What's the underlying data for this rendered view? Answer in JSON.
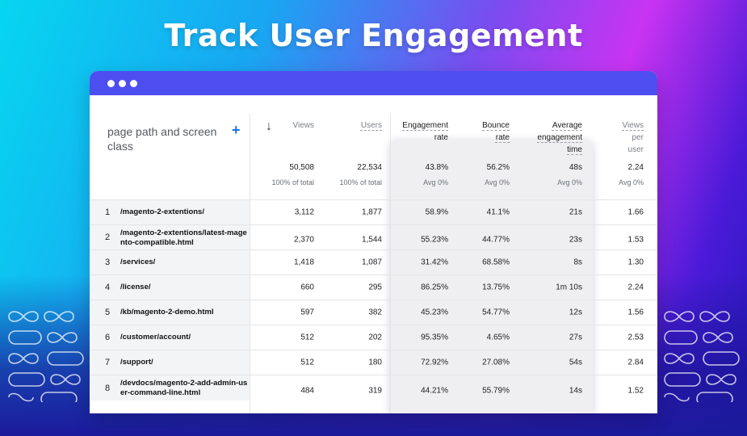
{
  "headline": "Track User Engagement",
  "window": {
    "first_col_title": "page path and screen class",
    "add_icon": "+",
    "sort_icon": "↓",
    "headers": {
      "views": "Views",
      "users": "Users",
      "engagement_rate": [
        "Engagement",
        "rate"
      ],
      "bounce_rate": [
        "Bounce",
        "rate"
      ],
      "avg_engagement_time": [
        "Average",
        "engagement",
        "time"
      ],
      "views_per_user": [
        "Views",
        "per",
        "user"
      ]
    },
    "totals": {
      "views": "50,508",
      "views_sub": "100% of total",
      "users": "22,534",
      "users_sub": "100% of total",
      "engagement_rate": "43.8%",
      "engagement_rate_sub": "Avg 0%",
      "bounce_rate": "56.2%",
      "bounce_rate_sub": "Avg 0%",
      "avg_time": "48s",
      "avg_time_sub": "Avg 0%",
      "views_per_user": "2.24",
      "views_per_user_sub": "Avg 0%"
    },
    "rows": [
      {
        "idx": "1",
        "path": "/magento-2-extentions/",
        "views": "3,112",
        "users": "1,877",
        "er": "58.9%",
        "br": "41.1%",
        "time": "21s",
        "vpu": "1.66"
      },
      {
        "idx": "2",
        "path": "/magento-2-extentions/latest-magento-compatible.html",
        "views": "2,370",
        "users": "1,544",
        "er": "55.23%",
        "br": "44.77%",
        "time": "23s",
        "vpu": "1.53"
      },
      {
        "idx": "3",
        "path": "/services/",
        "views": "1,418",
        "users": "1,087",
        "er": "31.42%",
        "br": "68.58%",
        "time": "8s",
        "vpu": "1.30"
      },
      {
        "idx": "4",
        "path": "/license/",
        "views": "660",
        "users": "295",
        "er": "86.25%",
        "br": "13.75%",
        "time": "1m 10s",
        "vpu": "2.24"
      },
      {
        "idx": "5",
        "path": "/kb/magento-2-demo.html",
        "views": "597",
        "users": "382",
        "er": "45.23%",
        "br": "54.77%",
        "time": "12s",
        "vpu": "1.56"
      },
      {
        "idx": "6",
        "path": "/customer/account/",
        "views": "512",
        "users": "202",
        "er": "95.35%",
        "br": "4.65%",
        "time": "27s",
        "vpu": "2.53"
      },
      {
        "idx": "7",
        "path": "/support/",
        "views": "512",
        "users": "180",
        "er": "72.92%",
        "br": "27.08%",
        "time": "54s",
        "vpu": "2.84"
      },
      {
        "idx": "8",
        "path": "/devdocs/magento-2-add-admin-user-command-line.html",
        "views": "484",
        "users": "319",
        "er": "44.21%",
        "br": "55.79%",
        "time": "14s",
        "vpu": "1.52"
      }
    ]
  },
  "colors": {
    "titlebar": "#4d4ef0",
    "accent_plus": "#1a73e8"
  }
}
